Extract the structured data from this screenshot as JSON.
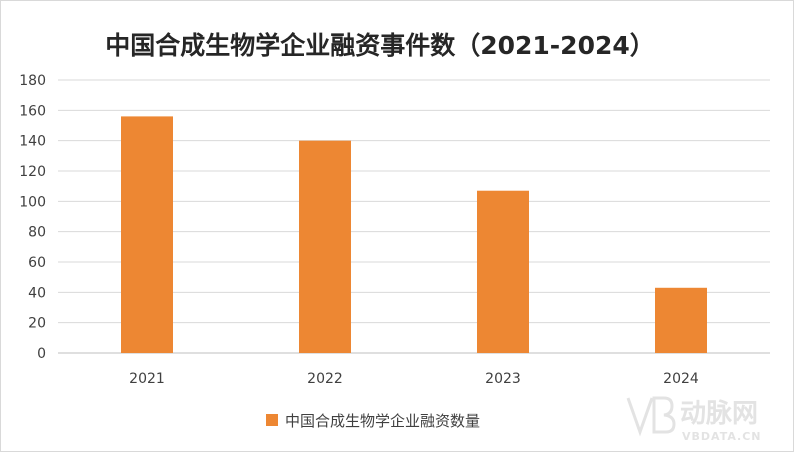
{
  "chart_data": {
    "type": "bar",
    "title": "中国合成生物学企业融资事件数（2021-2024）",
    "categories": [
      "2021",
      "2022",
      "2023",
      "2024"
    ],
    "series": [
      {
        "name": "中国合成生物学企业融资数量",
        "values": [
          156,
          140,
          107,
          43
        ]
      }
    ],
    "ylim": [
      0,
      180
    ],
    "yticks": [
      0,
      20,
      40,
      60,
      80,
      100,
      120,
      140,
      160,
      180
    ],
    "grid": true,
    "legend": "bottom",
    "colors": {
      "bar": "#ED8733",
      "grid": "#d9d9d9",
      "axis": "#bfbfbf"
    }
  },
  "watermark": {
    "brand": "动脉网",
    "site": "VBDATA.CN",
    "logo_icon": "vb-logo-icon"
  }
}
